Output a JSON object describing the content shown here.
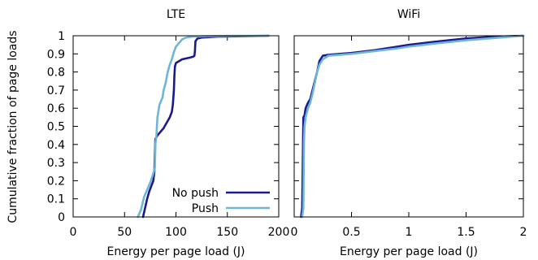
{
  "chart_data": {
    "shared_ylabel": "Cumulative fraction of page loads",
    "series_colors": {
      "No push": "#1a1a8c",
      "Push": "#6fb5d8"
    },
    "legend": {
      "location": "left panel, bottom-right",
      "entries": [
        {
          "name": "No push",
          "color": "#1a1a8c"
        },
        {
          "name": "Push",
          "color": "#6fb5d8"
        }
      ]
    },
    "panels": [
      {
        "type": "line",
        "title": "LTE",
        "xlabel": "Energy per page load (J)",
        "ylabel": "Cumulative fraction of page loads",
        "xlim": [
          0,
          200
        ],
        "ylim": [
          0,
          1
        ],
        "xticks": [
          0,
          50,
          100,
          150,
          200
        ],
        "xtick_labels": [
          "0",
          "50",
          "100",
          "150",
          "200"
        ],
        "yticks": [
          0,
          0.1,
          0.2,
          0.3,
          0.4,
          0.5,
          0.6,
          0.7,
          0.8,
          0.9,
          1
        ],
        "ytick_labels": [
          "0",
          "0.1",
          "0.2",
          "0.3",
          "0.4",
          "0.5",
          "0.6",
          "0.7",
          "0.8",
          "0.9",
          "1"
        ],
        "show_ytick_labels": true,
        "grid": false,
        "series": [
          {
            "name": "No push",
            "x": [
              68,
              70,
              72,
              74,
              76,
              78,
              79,
              79.5,
              80,
              82,
              85,
              88,
              91,
              94,
              96,
              97,
              98,
              98.5,
              99,
              100,
              103,
              106,
              110,
              114,
              117,
              118,
              118.5,
              119,
              121,
              125,
              140,
              160,
              190
            ],
            "y": [
              0,
              0.05,
              0.1,
              0.14,
              0.17,
              0.2,
              0.25,
              0.35,
              0.43,
              0.45,
              0.47,
              0.49,
              0.52,
              0.55,
              0.58,
              0.62,
              0.7,
              0.78,
              0.83,
              0.85,
              0.86,
              0.87,
              0.875,
              0.88,
              0.885,
              0.89,
              0.92,
              0.97,
              0.985,
              0.99,
              0.995,
              0.997,
              1.0
            ]
          },
          {
            "name": "Push",
            "x": [
              63,
              66,
              69,
              72,
              75,
              78,
              79.5,
              80,
              81,
              82,
              84,
              87,
              88,
              90,
              92,
              94,
              96,
              98,
              100,
              103,
              106,
              110,
              115,
              125,
              150,
              190
            ],
            "y": [
              0,
              0.04,
              0.11,
              0.15,
              0.19,
              0.24,
              0.27,
              0.4,
              0.45,
              0.55,
              0.62,
              0.66,
              0.7,
              0.74,
              0.8,
              0.84,
              0.87,
              0.91,
              0.94,
              0.96,
              0.98,
              0.99,
              0.995,
              0.997,
              0.999,
              1.0
            ]
          }
        ]
      },
      {
        "type": "line",
        "title": "WiFi",
        "xlabel": "Energy per page load (J)",
        "ylabel": "",
        "xlim": [
          0,
          2
        ],
        "ylim": [
          0,
          1
        ],
        "xticks": [
          0,
          0.5,
          1,
          1.5,
          2
        ],
        "xtick_labels": [
          "0",
          "0.5",
          "1",
          "1.5",
          "2"
        ],
        "yticks": [
          0,
          0.1,
          0.2,
          0.3,
          0.4,
          0.5,
          0.6,
          0.7,
          0.8,
          0.9,
          1
        ],
        "ytick_labels": [],
        "show_ytick_labels": false,
        "grid": false,
        "series": [
          {
            "name": "No push",
            "x": [
              0.06,
              0.07,
              0.075,
              0.08,
              0.09,
              0.1,
              0.12,
              0.14,
              0.16,
              0.18,
              0.2,
              0.22,
              0.25,
              0.3,
              0.4,
              0.5,
              0.7,
              0.9,
              1.0,
              1.2,
              1.5,
              1.75,
              2.0
            ],
            "y": [
              0,
              0.05,
              0.3,
              0.55,
              0.56,
              0.6,
              0.63,
              0.65,
              0.7,
              0.75,
              0.8,
              0.86,
              0.89,
              0.895,
              0.9,
              0.905,
              0.92,
              0.94,
              0.95,
              0.965,
              0.985,
              0.995,
              1.0
            ]
          },
          {
            "name": "Push",
            "x": [
              0.07,
              0.08,
              0.085,
              0.09,
              0.1,
              0.12,
              0.14,
              0.16,
              0.18,
              0.2,
              0.22,
              0.25,
              0.3,
              0.4,
              0.5,
              0.7,
              0.9,
              1.0,
              1.2,
              1.5,
              1.8,
              2.0
            ],
            "y": [
              0,
              0.05,
              0.4,
              0.5,
              0.55,
              0.6,
              0.63,
              0.68,
              0.74,
              0.8,
              0.84,
              0.87,
              0.89,
              0.895,
              0.9,
              0.915,
              0.93,
              0.94,
              0.955,
              0.975,
              0.99,
              1.0
            ]
          }
        ]
      }
    ]
  }
}
